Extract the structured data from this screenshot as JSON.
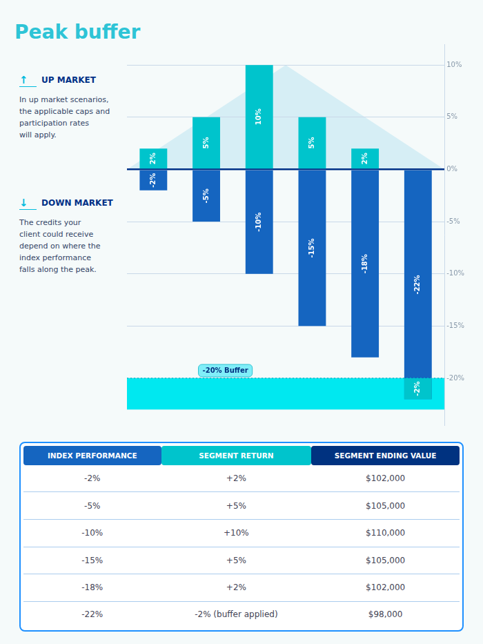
{
  "chart_data": {
    "type": "bar",
    "title": "Peak buffer",
    "categories": [
      null,
      null,
      null,
      null,
      null,
      null
    ],
    "series": [
      {
        "color": "#00C4CC",
        "values": [
          2,
          5,
          10,
          5,
          2,
          -2
        ],
        "bases": [
          0,
          0,
          0,
          0,
          0,
          -20
        ],
        "value_labels": [
          "2%",
          "5%",
          "10%",
          "5%",
          "2%",
          "-2%"
        ]
      },
      {
        "color": "#1565C0",
        "values": [
          -2,
          -5,
          -10,
          -15,
          -18,
          -22
        ],
        "value_labels": [
          "-2%",
          "-5%",
          "-10%",
          "-15%",
          "-18%",
          "-22%"
        ]
      }
    ],
    "ylim": [
      -24.5,
      12
    ],
    "yticks": [
      {
        "value": 10,
        "label": "10%"
      },
      {
        "value": 5,
        "label": "5%"
      },
      {
        "value": 0,
        "label": "0%"
      },
      {
        "value": -5,
        "label": "-5%"
      },
      {
        "value": -10,
        "label": "-10%"
      },
      {
        "value": -15,
        "label": "-15%"
      },
      {
        "value": -20,
        "label": "-20%"
      }
    ],
    "grid": true,
    "tick_labels": "y",
    "data_labels": true,
    "peak": 10,
    "buffer": {
      "label": "-20% Buffer",
      "top": -20,
      "bottom": -23
    },
    "annotations": [
      {
        "icon": "↑",
        "label": "UP MARKET",
        "text": "In up market scenarios,\nthe applicable caps and\nparticipation rates\nwill apply."
      },
      {
        "icon": "↓",
        "label": "DOWN MARKET",
        "text": "The credits your\nclient could receive\ndepend on where the\nindex performance\nfalls along the peak."
      }
    ],
    "table": {
      "headers": [
        "INDEX PERFORMANCE",
        "SEGMENT RETURN",
        "SEGMENT ENDING VALUE"
      ],
      "colors": [
        "#1565C0",
        "#00C4CC",
        "#003280"
      ],
      "rows": [
        [
          "-2%",
          "+2%",
          "$102,000"
        ],
        [
          "-5%",
          "+5%",
          "$105,000"
        ],
        [
          "-10%",
          "+10%",
          "$110,000"
        ],
        [
          "-15%",
          "+5%",
          "$105,000"
        ],
        [
          "-18%",
          "+2%",
          "$102,000"
        ],
        [
          "-22%",
          "-2% (buffer applied)",
          "$98,000"
        ]
      ]
    }
  }
}
